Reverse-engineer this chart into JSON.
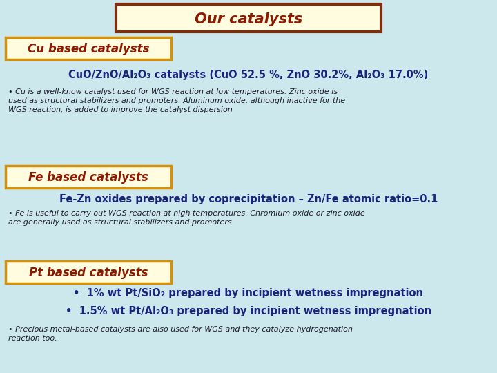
{
  "bg_color": "#cde8ec",
  "title": "Our catalysts",
  "title_color": "#8b1a00",
  "title_bg": "#fffce0",
  "title_border": "#7a3010",
  "section_bg": "#fffce0",
  "section_border": "#d4900a",
  "cu_header": "Cu based catalysts",
  "fe_header": "Fe based catalysts",
  "pt_header": "Pt based catalysts",
  "header_color": "#8b1a00",
  "formula_color": "#1a237e",
  "cu_italic_text": "• Cu is a well-know catalyst used for WGS reaction at low temperatures. Zinc oxide is\nused as structural stabilizers and promoters. Aluminum oxide, although inactive for the\nWGS reaction, is added to improve the catalyst dispersion",
  "fe_subheader": "Fe-Zn oxides prepared by coprecipitation – Zn/Fe atomic ratio=0.1",
  "fe_italic_text": "• Fe is useful to carry out WGS reaction at high temperatures. Chromium oxide or zinc oxide\nare generally used as structural stabilizers and promoters",
  "pt_bullet1": "•  1% wt Pt/SiO₂ prepared by incipient wetness impregnation",
  "pt_bullet2": "•  1.5% wt Pt/Al₂O₃ prepared by incipient wetness impregnation",
  "pt_italic_text": "• Precious metal-based catalysts are also used for WGS and they catalyze hydrogenation\nreaction too.",
  "italic_color": "#1a1a2e"
}
